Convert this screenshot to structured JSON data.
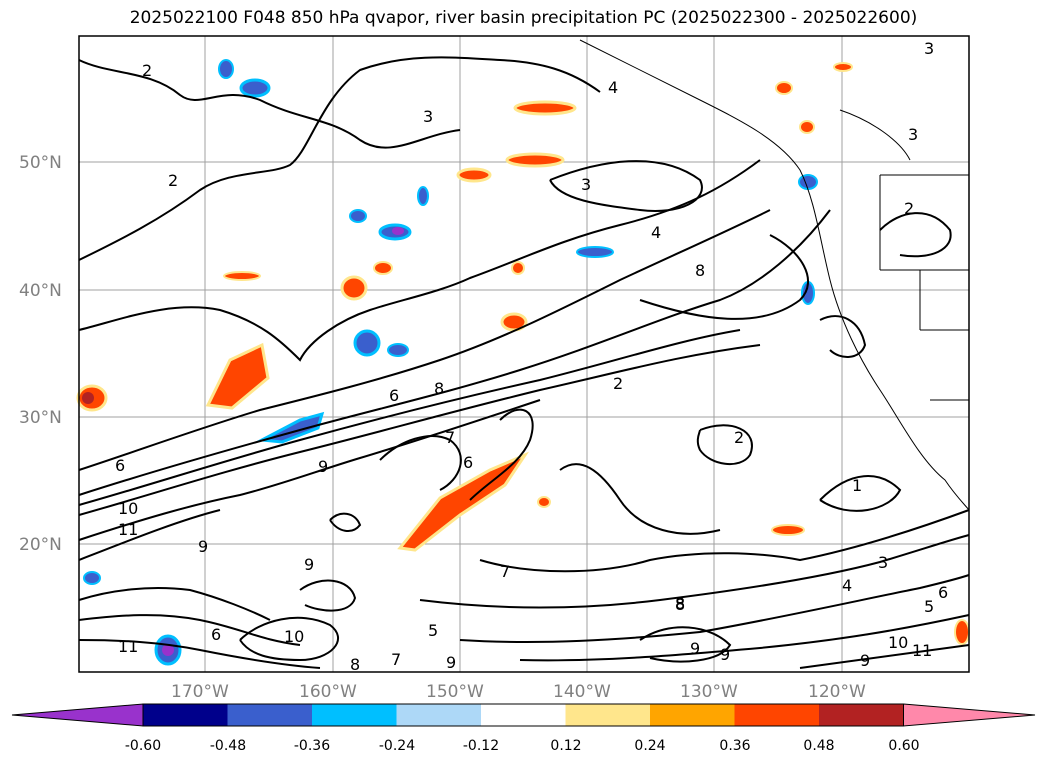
{
  "title": "2025022100 F048 850 hPa qvapor, river basin precipitation PC (2025022300 - 2025022600)",
  "map": {
    "lat_labels": [
      "50°N",
      "40°N",
      "30°N",
      "20°N"
    ],
    "lon_labels": [
      "170°W",
      "160°W",
      "150°W",
      "140°W",
      "130°W",
      "120°W"
    ],
    "contour_labels": [
      "2",
      "3",
      "4",
      "3",
      "3",
      "2",
      "4",
      "8",
      "6",
      "8",
      "2",
      "7",
      "6",
      "9",
      "10",
      "11",
      "9",
      "6",
      "9",
      "8",
      "5",
      "7",
      "9",
      "8",
      "9",
      "10",
      "11",
      "6",
      "9",
      "2",
      "1",
      "3",
      "4",
      "5",
      "6",
      "7",
      "8",
      "9",
      "10",
      "11",
      "2",
      "3"
    ]
  },
  "colorbar": {
    "ticks": [
      "-0.60",
      "-0.48",
      "-0.36",
      "-0.24",
      "-0.12",
      "0.12",
      "0.24",
      "0.36",
      "0.48",
      "0.60"
    ],
    "colors": [
      "#9932cc",
      "#00008b",
      "#3a5fcd",
      "#00bfff",
      "#add8f7",
      "#ffffff",
      "#ffe68c",
      "#ffa500",
      "#ff4500",
      "#b22222",
      "#ff88aa"
    ]
  }
}
